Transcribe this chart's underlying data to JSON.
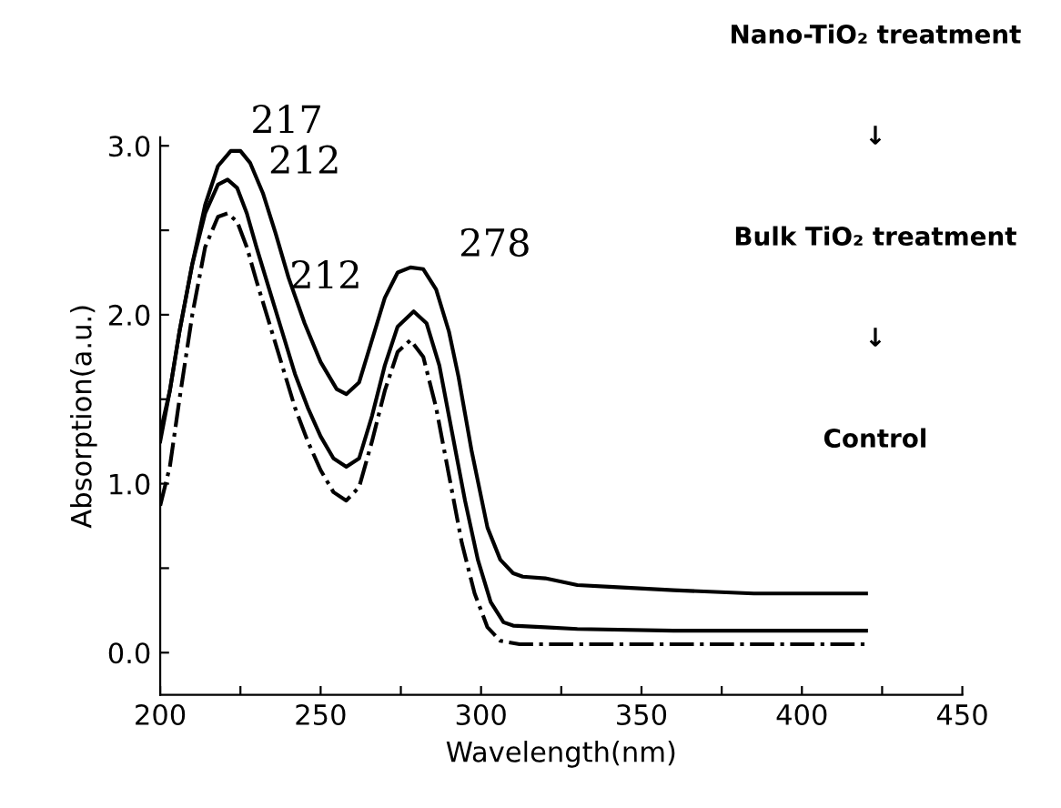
{
  "chart_data": {
    "type": "line",
    "xlabel": "Wavelength(nm)",
    "ylabel": "Absorption(a.u.)",
    "xlim": [
      200,
      450
    ],
    "ylim": [
      -0.25,
      3.05
    ],
    "xticks": [
      200,
      {
        "value": 225,
        "label": null
      },
      250,
      {
        "value": 275,
        "label": null
      },
      300,
      {
        "value": 325,
        "label": null
      },
      350,
      {
        "value": 375,
        "label": null
      },
      400,
      {
        "value": 425,
        "label": null
      },
      450
    ],
    "yticks": [
      {
        "value": 0.0,
        "label": "0.0"
      },
      {
        "value": 0.5,
        "label": null
      },
      {
        "value": 1.0,
        "label": "1.0"
      },
      {
        "value": 1.5,
        "label": null
      },
      {
        "value": 2.0,
        "label": "2.0"
      },
      {
        "value": 2.5,
        "label": null
      },
      {
        "value": 3.0,
        "label": "3.0"
      }
    ],
    "grid": false,
    "legend": false,
    "marker": "none",
    "series": [
      {
        "color": "#000000",
        "line_style": "solid",
        "x": [
          200,
          203,
          206,
          210,
          214,
          218,
          222,
          225,
          228,
          232,
          236,
          240,
          245,
          250,
          255,
          258,
          262,
          266,
          270,
          274,
          278,
          282,
          286,
          290,
          293,
          297,
          302,
          306,
          310,
          313,
          320,
          330,
          340,
          360,
          385,
          420
        ],
        "values": [
          1.25,
          1.55,
          1.9,
          2.3,
          2.65,
          2.88,
          2.97,
          2.97,
          2.9,
          2.72,
          2.48,
          2.22,
          1.95,
          1.72,
          1.56,
          1.53,
          1.6,
          1.85,
          2.1,
          2.25,
          2.28,
          2.27,
          2.15,
          1.9,
          1.63,
          1.2,
          0.74,
          0.55,
          0.47,
          0.45,
          0.44,
          0.4,
          0.39,
          0.37,
          0.35,
          0.35
        ]
      },
      {
        "color": "#000000",
        "line_style": "solid",
        "x": [
          200,
          203,
          206,
          210,
          214,
          218,
          221,
          224,
          227,
          230,
          234,
          238,
          242,
          246,
          250,
          254,
          258,
          262,
          266,
          270,
          274,
          279,
          283,
          287,
          291,
          295,
          299,
          303,
          307,
          310,
          320,
          330,
          360,
          420
        ],
        "values": [
          1.3,
          1.55,
          1.9,
          2.3,
          2.6,
          2.77,
          2.8,
          2.75,
          2.6,
          2.4,
          2.15,
          1.9,
          1.65,
          1.45,
          1.28,
          1.15,
          1.1,
          1.15,
          1.4,
          1.7,
          1.93,
          2.02,
          1.95,
          1.7,
          1.3,
          0.9,
          0.55,
          0.3,
          0.18,
          0.16,
          0.15,
          0.14,
          0.13,
          0.13
        ]
      },
      {
        "color": "#000000",
        "line_style": "dashdot",
        "x": [
          200,
          203,
          206,
          210,
          214,
          218,
          221,
          224,
          227,
          230,
          234,
          238,
          242,
          246,
          250,
          254,
          258,
          262,
          266,
          270,
          274,
          278,
          282,
          286,
          290,
          294,
          298,
          302,
          306,
          312,
          330,
          360,
          420
        ],
        "values": [
          0.87,
          1.1,
          1.5,
          2.0,
          2.4,
          2.58,
          2.6,
          2.55,
          2.4,
          2.2,
          1.95,
          1.7,
          1.45,
          1.25,
          1.08,
          0.95,
          0.9,
          0.98,
          1.25,
          1.55,
          1.78,
          1.85,
          1.75,
          1.45,
          1.05,
          0.65,
          0.35,
          0.15,
          0.07,
          0.05,
          0.05,
          0.05,
          0.05
        ]
      }
    ],
    "annotations": [
      {
        "text": "217",
        "x": 225,
        "y": 2.97
      },
      {
        "text": "212",
        "x": 229,
        "y": 2.85
      },
      {
        "text": "212",
        "x": 234,
        "y": 2.05
      },
      {
        "text": "278",
        "x": 282,
        "y": 2.27
      },
      "Nano-TiO₂ treatment",
      "↓",
      "Bulk TiO₂ treatment",
      "↓",
      "Control"
    ]
  }
}
